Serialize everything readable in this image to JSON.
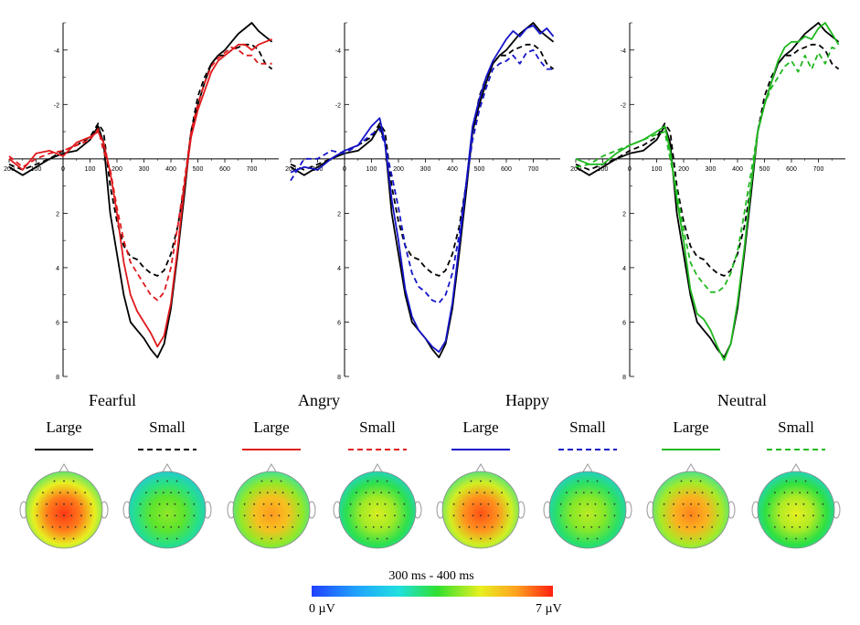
{
  "chart_data": [
    {
      "type": "line",
      "x": [
        -200,
        -150,
        -100,
        -50,
        0,
        50,
        100,
        130,
        150,
        175,
        200,
        225,
        250,
        275,
        300,
        325,
        350,
        375,
        400,
        425,
        450,
        475,
        500,
        525,
        550,
        575,
        600,
        625,
        650,
        675,
        700,
        725,
        750,
        775
      ],
      "series": [
        {
          "values": [
            0.3,
            0.6,
            0.3,
            0.0,
            -0.2,
            -0.3,
            -0.7,
            -1.2,
            -0.6,
            2.0,
            3.5,
            5.0,
            6.0,
            6.3,
            6.6,
            7.0,
            7.3,
            6.8,
            5.5,
            3.5,
            1.3,
            -1.0,
            -2.0,
            -2.8,
            -3.5,
            -3.8,
            -4.0,
            -4.3,
            -4.6,
            -4.8,
            -5.0,
            -4.7,
            -4.5,
            -4.3
          ]
        },
        {
          "values": [
            0.2,
            0.4,
            0.2,
            0.0,
            -0.3,
            -0.5,
            -0.8,
            -1.3,
            -1.0,
            1.0,
            2.3,
            3.2,
            3.6,
            3.7,
            4.0,
            4.2,
            4.3,
            4.1,
            3.5,
            2.5,
            1.0,
            -1.0,
            -2.3,
            -3.0,
            -3.5,
            -3.8,
            -3.8,
            -4.0,
            -4.1,
            -4.2,
            -4.2,
            -4.0,
            -3.5,
            -3.3
          ]
        },
        {
          "values": [
            0.0,
            0.4,
            -0.2,
            -0.3,
            -0.1,
            -0.6,
            -0.8,
            -1.0,
            -0.6,
            0.5,
            2.0,
            3.8,
            5.0,
            5.6,
            6.0,
            6.4,
            6.9,
            6.5,
            5.3,
            3.3,
            1.0,
            -0.8,
            -1.8,
            -2.5,
            -3.2,
            -3.6,
            -3.8,
            -4.0,
            -4.2,
            -4.2,
            -4.0,
            -4.2,
            -4.3,
            -4.4
          ]
        },
        {
          "values": [
            -0.1,
            0.3,
            0.0,
            -0.2,
            -0.3,
            -0.5,
            -0.7,
            -1.1,
            -0.3,
            0.4,
            1.8,
            3.0,
            3.8,
            4.2,
            4.6,
            5.0,
            5.2,
            4.9,
            4.0,
            2.5,
            0.8,
            -1.0,
            -2.0,
            -2.8,
            -3.4,
            -3.7,
            -3.9,
            -4.1,
            -4.0,
            -3.8,
            -3.8,
            -3.5,
            -3.5,
            -3.5
          ]
        }
      ],
      "ylim": [
        8,
        -5
      ],
      "xlim": [
        -200,
        800
      ],
      "xticks": [
        "200",
        "100",
        "0",
        "100",
        "200",
        "300",
        "400",
        "500",
        "600",
        "700"
      ],
      "yticks": [
        "-4",
        "-2",
        "2",
        "4",
        "6",
        "8"
      ]
    },
    {
      "type": "line",
      "x": [
        -200,
        -150,
        -100,
        -50,
        0,
        50,
        100,
        130,
        150,
        175,
        200,
        225,
        250,
        275,
        300,
        325,
        350,
        375,
        400,
        425,
        450,
        475,
        500,
        525,
        550,
        575,
        600,
        625,
        650,
        675,
        700,
        725,
        750,
        775
      ],
      "series": [
        {
          "values": [
            0.3,
            0.6,
            0.3,
            0.0,
            -0.2,
            -0.3,
            -0.7,
            -1.2,
            -0.6,
            2.0,
            3.5,
            5.0,
            6.0,
            6.3,
            6.6,
            7.0,
            7.3,
            6.8,
            5.5,
            3.5,
            1.3,
            -1.0,
            -2.0,
            -2.8,
            -3.5,
            -3.8,
            -4.0,
            -4.3,
            -4.6,
            -4.8,
            -5.0,
            -4.7,
            -4.5,
            -4.3
          ]
        },
        {
          "values": [
            0.2,
            0.4,
            0.2,
            0.0,
            -0.3,
            -0.5,
            -0.8,
            -1.3,
            -1.0,
            1.0,
            2.3,
            3.2,
            3.6,
            3.7,
            4.0,
            4.2,
            4.3,
            4.1,
            3.5,
            2.5,
            1.0,
            -1.0,
            -2.3,
            -3.0,
            -3.5,
            -3.8,
            -3.8,
            -4.0,
            -4.1,
            -4.2,
            -4.2,
            -4.0,
            -3.5,
            -3.3
          ]
        },
        {
          "values": [
            0.5,
            0.3,
            0.4,
            0.0,
            -0.3,
            -0.5,
            -1.2,
            -1.5,
            -0.6,
            1.5,
            3.0,
            4.8,
            5.8,
            6.3,
            6.6,
            6.9,
            7.1,
            6.7,
            5.3,
            3.2,
            1.0,
            -1.2,
            -2.2,
            -3.0,
            -3.6,
            -4.0,
            -4.4,
            -4.7,
            -4.5,
            -4.8,
            -4.9,
            -4.6,
            -4.8,
            -4.5
          ]
        },
        {
          "values": [
            0.8,
            0.0,
            0.0,
            -0.3,
            -0.2,
            -0.5,
            -0.9,
            -1.1,
            -0.5,
            0.6,
            1.8,
            3.2,
            4.2,
            4.7,
            4.9,
            5.2,
            5.3,
            5.0,
            4.2,
            2.8,
            1.0,
            -0.7,
            -1.8,
            -2.6,
            -3.3,
            -3.5,
            -3.6,
            -3.8,
            -3.5,
            -3.9,
            -4.0,
            -3.6,
            -3.3,
            -3.3
          ]
        }
      ],
      "ylim": [
        8,
        -5
      ],
      "xlim": [
        -200,
        800
      ],
      "xticks": [
        "200",
        "100",
        "0",
        "100",
        "200",
        "300",
        "400",
        "500",
        "600",
        "700"
      ],
      "yticks": [
        "-4",
        "-2",
        "2",
        "4",
        "6",
        "8"
      ]
    },
    {
      "type": "line",
      "x": [
        -200,
        -150,
        -100,
        -50,
        0,
        50,
        100,
        130,
        150,
        175,
        200,
        225,
        250,
        275,
        300,
        325,
        350,
        375,
        400,
        425,
        450,
        475,
        500,
        525,
        550,
        575,
        600,
        625,
        650,
        675,
        700,
        725,
        750,
        775
      ],
      "series": [
        {
          "values": [
            0.3,
            0.6,
            0.3,
            0.0,
            -0.2,
            -0.3,
            -0.7,
            -1.2,
            -0.6,
            2.0,
            3.5,
            5.0,
            6.0,
            6.3,
            6.6,
            7.0,
            7.3,
            6.8,
            5.5,
            3.5,
            1.3,
            -1.0,
            -2.0,
            -2.8,
            -3.5,
            -3.8,
            -4.0,
            -4.3,
            -4.6,
            -4.8,
            -5.0,
            -4.7,
            -4.5,
            -4.3
          ]
        },
        {
          "values": [
            0.2,
            0.4,
            0.2,
            0.0,
            -0.3,
            -0.5,
            -0.8,
            -1.3,
            -1.0,
            1.0,
            2.3,
            3.2,
            3.6,
            3.7,
            4.0,
            4.2,
            4.3,
            4.1,
            3.5,
            2.5,
            1.0,
            -1.0,
            -2.3,
            -3.0,
            -3.5,
            -3.8,
            -3.8,
            -4.0,
            -4.1,
            -4.2,
            -4.2,
            -4.0,
            -3.5,
            -3.3
          ]
        },
        {
          "values": [
            0.0,
            0.2,
            0.2,
            -0.2,
            -0.5,
            -0.7,
            -1.0,
            -1.2,
            -0.3,
            1.5,
            3.0,
            4.8,
            5.7,
            5.9,
            6.3,
            6.9,
            7.4,
            6.8,
            5.3,
            3.3,
            1.0,
            -1.0,
            -2.0,
            -2.8,
            -3.6,
            -4.1,
            -4.3,
            -4.3,
            -4.5,
            -4.4,
            -4.8,
            -5.0,
            -4.6,
            -4.2
          ]
        },
        {
          "values": [
            0.3,
            0.2,
            -0.1,
            -0.3,
            -0.5,
            -0.7,
            -0.9,
            -1.0,
            0.0,
            1.2,
            2.6,
            3.8,
            4.3,
            4.6,
            4.9,
            4.9,
            4.7,
            4.2,
            3.4,
            2.0,
            0.5,
            -1.0,
            -2.0,
            -2.6,
            -3.0,
            -3.4,
            -3.6,
            -3.2,
            -3.8,
            -3.3,
            -3.9,
            -3.5,
            -4.1,
            -4.0
          ]
        }
      ],
      "ylim": [
        8,
        -5
      ],
      "xlim": [
        -200,
        800
      ],
      "xticks": [
        "200",
        "100",
        "0",
        "100",
        "200",
        "300",
        "400",
        "500",
        "600",
        "700"
      ],
      "yticks": [
        "-4",
        "-2",
        "2",
        "4",
        "6",
        "8"
      ]
    }
  ],
  "conditions": [
    {
      "label": "Fearful"
    },
    {
      "label": "Angry"
    },
    {
      "label": "Happy"
    },
    {
      "label": "Neutral"
    }
  ],
  "legend": [
    {
      "label": "Large",
      "color": "#000000",
      "dash": false
    },
    {
      "label": "Small",
      "color": "#000000",
      "dash": true
    },
    {
      "label": "Large",
      "color": "#e0191c",
      "dash": false
    },
    {
      "label": "Small",
      "color": "#e0191c",
      "dash": true
    },
    {
      "label": "Large",
      "color": "#1414c8",
      "dash": false
    },
    {
      "label": "Small",
      "color": "#1414c8",
      "dash": true
    },
    {
      "label": "Large",
      "color": "#1fb81f",
      "dash": false
    },
    {
      "label": "Small",
      "color": "#1fb81f",
      "dash": true
    }
  ],
  "topomaps": [
    {
      "value": 6.8
    },
    {
      "value": 4.3
    },
    {
      "value": 6.0
    },
    {
      "value": 4.8
    },
    {
      "value": 6.6
    },
    {
      "value": 4.6
    },
    {
      "value": 6.2
    },
    {
      "value": 4.9
    }
  ],
  "colorbar": {
    "title": "300 ms - 400 ms",
    "min_label": "0 µV",
    "max_label": "7 µV",
    "min": 0,
    "max": 7
  },
  "colors": {
    "black": "#000000",
    "red": "#e0191c",
    "blue": "#1414c8",
    "green": "#1fb81f"
  }
}
